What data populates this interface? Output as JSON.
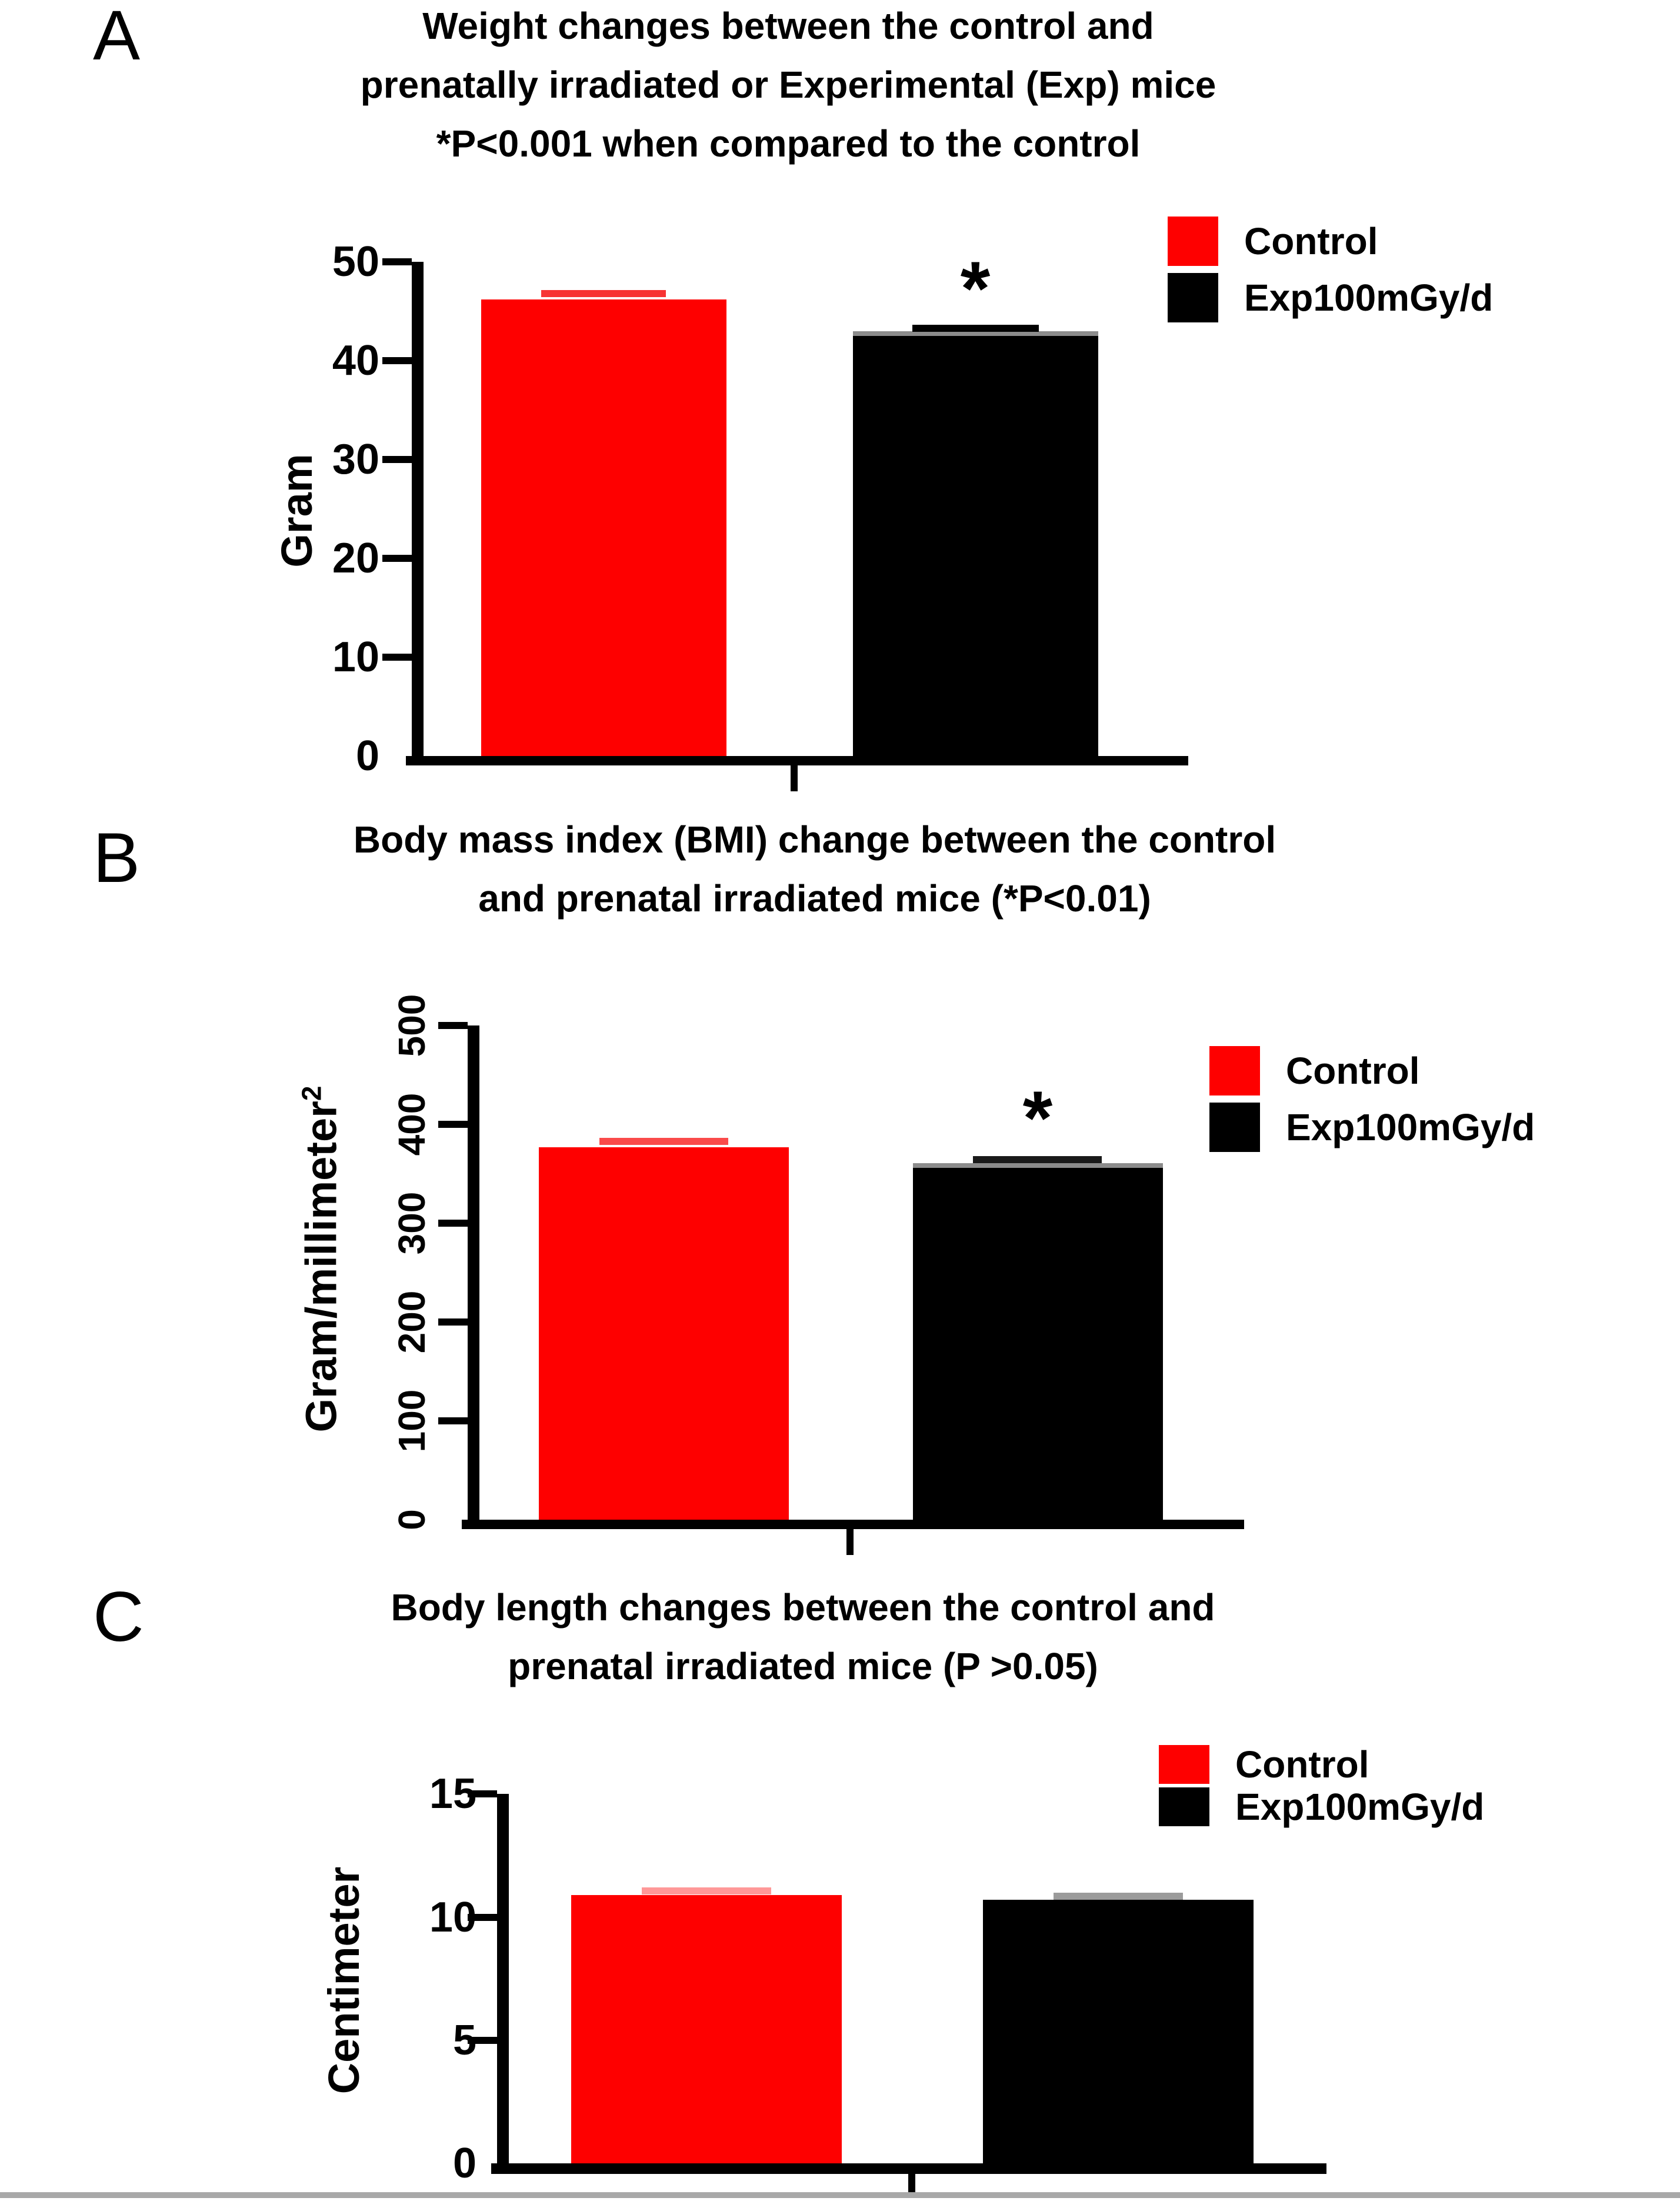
{
  "figure_note": "Three-panel bar figure comparing control and prenatally irradiated (Exp100mGy/d) mice",
  "accent_colors": {
    "control_red": "#fe0000",
    "exp_black": "#000000",
    "grey_rule": "#a8a8a8"
  },
  "chart_data": [
    {
      "type": "bar",
      "panel_label": "A",
      "title": "Weight changes between the control and prenatally irradiated or Experimental (Exp) mice *P<0.001 when compared to the control",
      "title_lines": [
        "Weight changes between the control and",
        "prenatally irradiated or Experimental (Exp) mice",
        "*P<0.001 when compared to the control"
      ],
      "categories": [
        "Control",
        "Exp100mGy/d"
      ],
      "values": [
        46.2,
        42.5
      ],
      "error_caps": [
        46.8,
        43.3
      ],
      "bar_colors": [
        "#fe0000",
        "#000000"
      ],
      "error_cap_colors": [
        "#f73333",
        "#000000"
      ],
      "xlabel": "",
      "ylabel": "Gram",
      "ylim": [
        0,
        50
      ],
      "yticks": [
        0,
        10,
        20,
        30,
        40,
        50
      ],
      "ytick_labels": [
        "0",
        "10",
        "20",
        "30",
        "40",
        "50"
      ],
      "legend_position": "top-right",
      "grid": false,
      "significance": {
        "symbol": "*",
        "bar": "Exp100mGy/d",
        "note": "*P<0.001 when compared to the control"
      }
    },
    {
      "type": "bar",
      "panel_label": "B",
      "title": "Body mass index (BMI) change between the control and prenatal irradiated mice (*P<0.01)",
      "title_lines": [
        "Body mass index (BMI) change between the control",
        "and prenatal irradiated mice (*P<0.01)"
      ],
      "categories": [
        "Control",
        "Exp100mGy/d"
      ],
      "values": [
        377,
        356
      ],
      "error_caps": [
        383,
        364
      ],
      "bar_colors": [
        "#fe0000",
        "#000000"
      ],
      "error_cap_colors": [
        "#fa4a4a",
        "#1a1a1a"
      ],
      "xlabel": "",
      "ylabel": "Gram/millimeter²",
      "ylabel_base": "Gram/millimeter",
      "ylabel_sup": "2",
      "ylim": [
        0,
        500
      ],
      "yticks": [
        0,
        100,
        200,
        300,
        400,
        500
      ],
      "ytick_labels": [
        "0",
        "100",
        "200",
        "300",
        "400",
        "500"
      ],
      "ytick_labels_rotated": true,
      "legend_position": "top-right",
      "grid": false,
      "significance": {
        "symbol": "*",
        "bar": "Exp100mGy/d",
        "note": "*P<0.01"
      }
    },
    {
      "type": "bar",
      "panel_label": "C",
      "title": "Body length changes between the control and prenatal irradiated mice (P >0.05)",
      "title_lines": [
        "Body length changes between the control and",
        "prenatal irradiated mice (P >0.05)"
      ],
      "categories": [
        "Control",
        "Exp100mGy/d"
      ],
      "values": [
        10.9,
        10.7
      ],
      "error_caps": [
        11.05,
        10.85
      ],
      "bar_colors": [
        "#fe0000",
        "#000000"
      ],
      "error_cap_colors": [
        "#ff9898",
        "#9b9b9b"
      ],
      "xlabel": "",
      "ylabel": "Centimeter",
      "ylim": [
        0,
        15
      ],
      "yticks": [
        0,
        5,
        10,
        15
      ],
      "ytick_labels": [
        "0",
        "5",
        "10",
        "15"
      ],
      "legend_position": "top-right",
      "grid": false,
      "significance": null
    }
  ]
}
